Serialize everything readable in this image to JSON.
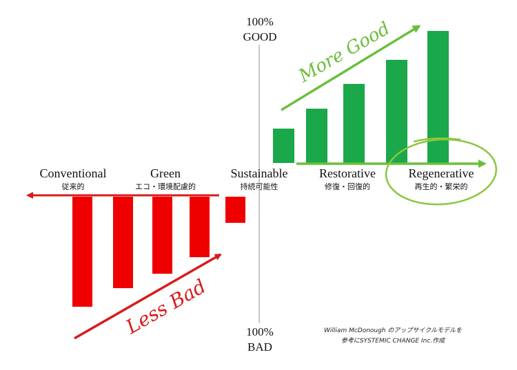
{
  "axis": {
    "top_percent": "100%",
    "top_word": "GOOD",
    "bottom_percent": "100%",
    "bottom_word": "BAD"
  },
  "stages": [
    {
      "en": "Conventional",
      "jp": "従来的"
    },
    {
      "en": "Green",
      "jp": "エコ・環境配慮的"
    },
    {
      "en": "Sustainable",
      "jp": "持続可能性"
    },
    {
      "en": "Restorative",
      "jp": "修復・回復的"
    },
    {
      "en": "Regenerative",
      "jp": "再生的・繁栄的"
    }
  ],
  "annotations": {
    "more_good": "More Good",
    "less_bad": "Less Bad"
  },
  "credit": {
    "line1": "William McDonough のアップサイクルモデルを",
    "line2": "参考にSYSTEMIC CHANGE Inc.作成"
  },
  "colors": {
    "bad_red": "#ee0000",
    "good_green": "#1aa84a",
    "arrow_green": "#6abf3a",
    "arrow_red": "#d81b1b",
    "axis_grey": "#c8c8c8"
  },
  "chart_data": {
    "type": "bar",
    "bad_bars_relative": [
      1.0,
      0.83,
      0.7,
      0.55,
      0.24
    ],
    "good_bars_relative": [
      0.26,
      0.41,
      0.6,
      0.78,
      1.0
    ]
  }
}
